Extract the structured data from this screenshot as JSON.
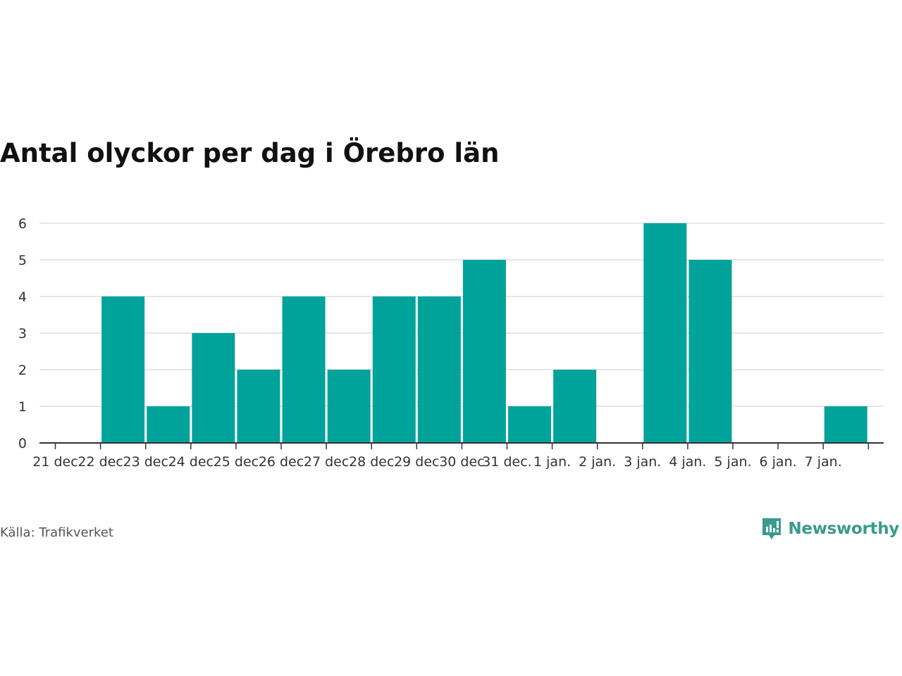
{
  "title": "Antal olyckor per dag i Örebro län",
  "source": "Källa: Trafikverket",
  "brand": {
    "name": "Newsworthy",
    "color": "#3a9a8e",
    "icon": "newsworthy-logo-icon"
  },
  "chart_data": {
    "type": "bar",
    "title": "Antal olyckor per dag i Örebro län",
    "xlabel": "",
    "ylabel": "",
    "categories": [
      "21 dec",
      "22 dec",
      "23 dec",
      "24 dec",
      "25 dec",
      "26 dec",
      "27 dec",
      "28 dec",
      "29 dec",
      "30 dec",
      "31 dec.",
      "1 jan.",
      "2 jan.",
      "3 jan.",
      "4 jan.",
      "5 jan.",
      "6 jan.",
      "7 jan."
    ],
    "values": [
      0,
      4,
      1,
      3,
      2,
      4,
      2,
      4,
      4,
      5,
      1,
      2,
      0,
      6,
      5,
      0,
      0,
      1
    ],
    "yticks": [
      0,
      1,
      2,
      3,
      4,
      5,
      6
    ],
    "ylim": [
      0,
      6
    ],
    "grid": true,
    "legend": "none",
    "bar_color": "#00a39a"
  }
}
